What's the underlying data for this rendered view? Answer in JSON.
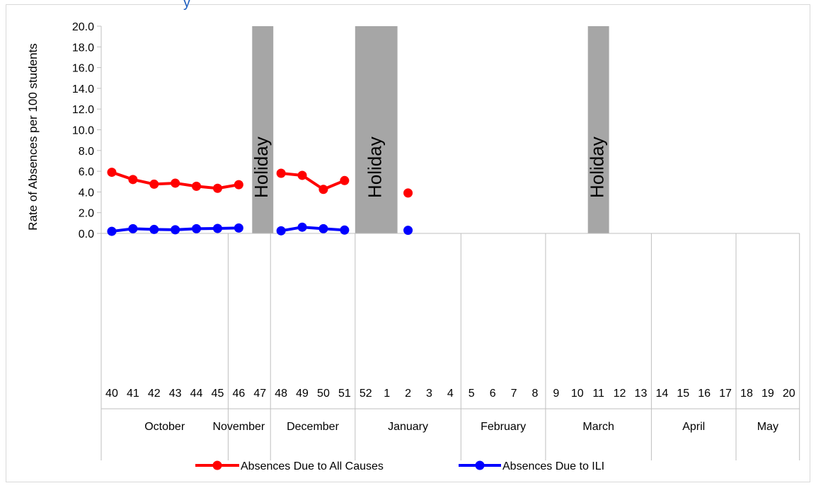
{
  "colors": {
    "all_causes": "#ff0000",
    "ili": "#0000ff",
    "holiday": "#a6a6a6",
    "axis": "#bfbfbf"
  },
  "chart_data": {
    "type": "line",
    "title": "",
    "title_fragment": "y",
    "ylabel": "Rate of Absences per 100 students",
    "xlabel": "",
    "ylim": [
      0,
      20
    ],
    "y_ticks": [
      "0.0",
      "2.0",
      "4.0",
      "6.0",
      "8.0",
      "10.0",
      "12.0",
      "14.0",
      "16.0",
      "18.0",
      "20.0"
    ],
    "categories": [
      "40",
      "41",
      "42",
      "43",
      "44",
      "45",
      "46",
      "47",
      "48",
      "49",
      "50",
      "51",
      "52",
      "1",
      "2",
      "3",
      "4",
      "5",
      "6",
      "7",
      "8",
      "9",
      "10",
      "11",
      "12",
      "13",
      "14",
      "15",
      "16",
      "17",
      "18",
      "19",
      "20"
    ],
    "months": [
      {
        "name": "October",
        "start": 0,
        "end": 6
      },
      {
        "name": "November",
        "start": 5,
        "end": 8
      },
      {
        "name": "December",
        "start": 8,
        "end": 12
      },
      {
        "name": "January",
        "start": 12,
        "end": 17
      },
      {
        "name": "February",
        "start": 17,
        "end": 21
      },
      {
        "name": "March",
        "start": 21,
        "end": 26
      },
      {
        "name": "April",
        "start": 26,
        "end": 30
      },
      {
        "name": "May",
        "start": 30,
        "end": 33
      }
    ],
    "holidays": [
      {
        "label": "Holiday",
        "start": 7,
        "end": 8
      },
      {
        "label": "Holiday",
        "start": 12,
        "end": 14
      },
      {
        "label": "Holiday",
        "start": 23,
        "end": 24
      }
    ],
    "series": [
      {
        "name": "Absences Due to All Causes",
        "color_key": "all_causes",
        "values": [
          5.9,
          5.2,
          4.75,
          4.85,
          4.55,
          4.35,
          4.7,
          null,
          5.8,
          5.6,
          4.25,
          5.1,
          null,
          null,
          3.9,
          null,
          null,
          null,
          null,
          null,
          null,
          null,
          null,
          null,
          null,
          null,
          null,
          null,
          null,
          null,
          null,
          null,
          null
        ]
      },
      {
        "name": "Absences Due to ILI",
        "color_key": "ili",
        "values": [
          0.2,
          0.45,
          0.38,
          0.35,
          0.45,
          0.48,
          0.52,
          null,
          0.25,
          0.6,
          0.45,
          0.32,
          null,
          null,
          0.3,
          null,
          null,
          null,
          null,
          null,
          null,
          null,
          null,
          null,
          null,
          null,
          null,
          null,
          null,
          null,
          null,
          null,
          null
        ]
      }
    ],
    "legend_position": "bottom",
    "grid": false
  }
}
